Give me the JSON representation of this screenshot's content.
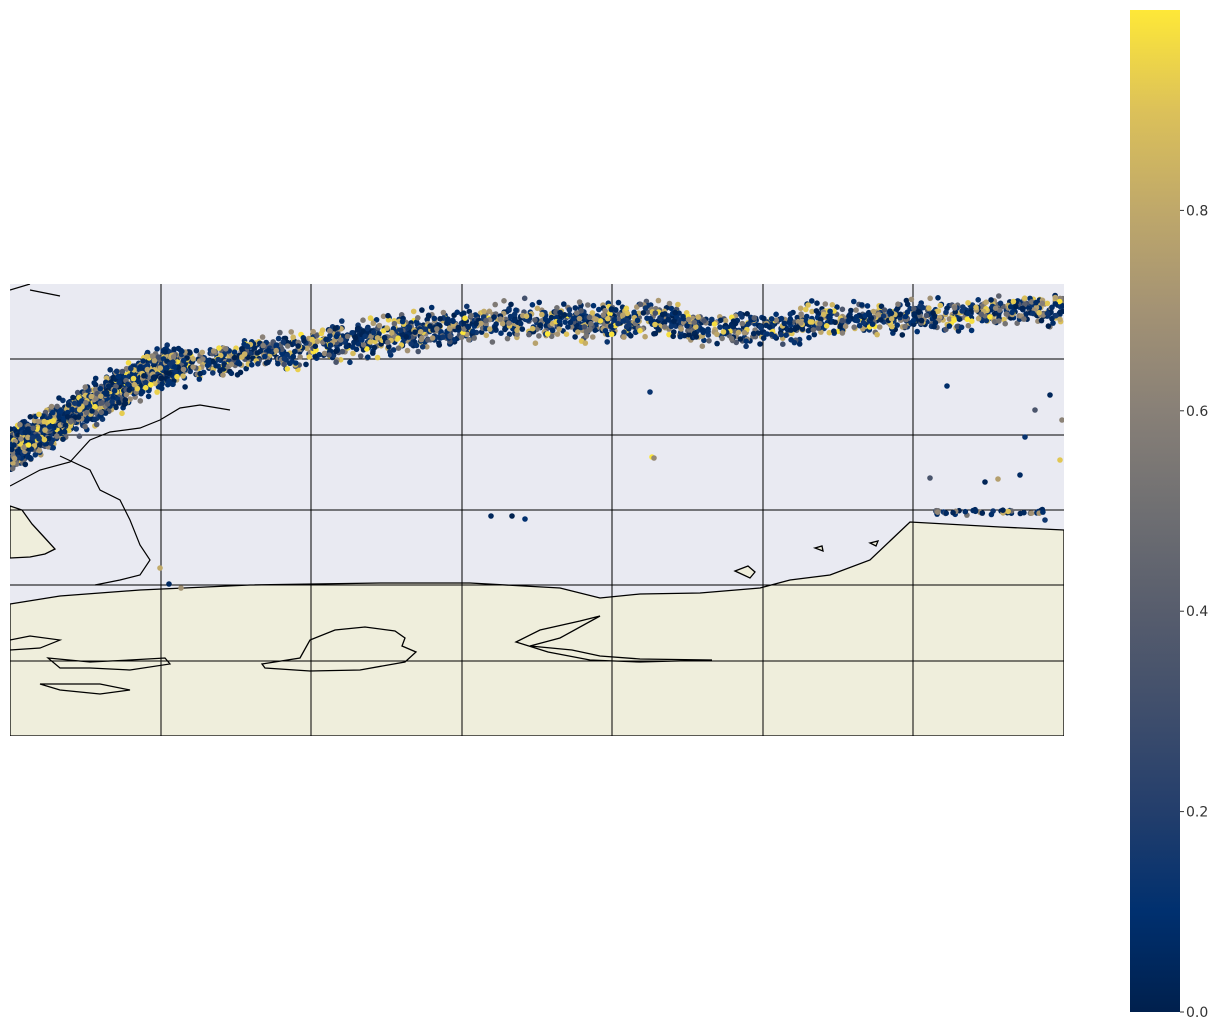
{
  "colors": {
    "ocean": "#e9eaf2",
    "land": "#efeedc",
    "coast": "#000000",
    "grid": "#000000",
    "colormap": "cividis"
  },
  "map": {
    "projection": "plate-carree",
    "gridlines": true,
    "grid_columns": 7,
    "grid_rows": 6,
    "coastline": true,
    "land_fill": true
  },
  "chart_data": {
    "type": "scatter",
    "title": "",
    "xlabel": "",
    "ylabel": "",
    "colorbar": {
      "orientation": "vertical",
      "position": "right",
      "range": [
        0.0,
        1.0
      ],
      "ticks": [
        0.0,
        0.2,
        0.4,
        0.6,
        0.8
      ],
      "tick_labels": [
        "0.0",
        "0.2",
        "0.4",
        "0.6",
        "0.8"
      ]
    },
    "point_clusters": [
      {
        "region": "northwest band",
        "count": 1400,
        "value_mean": 0.22
      },
      {
        "region": "central band",
        "count": 1300,
        "value_mean": 0.25
      },
      {
        "region": "northeast band",
        "count": 800,
        "value_mean": 0.3
      },
      {
        "region": "east coastal patch",
        "count": 40,
        "value_mean": 0.35
      },
      {
        "region": "scattered offshore points",
        "count": 20,
        "value_mean": 0.45
      }
    ]
  }
}
